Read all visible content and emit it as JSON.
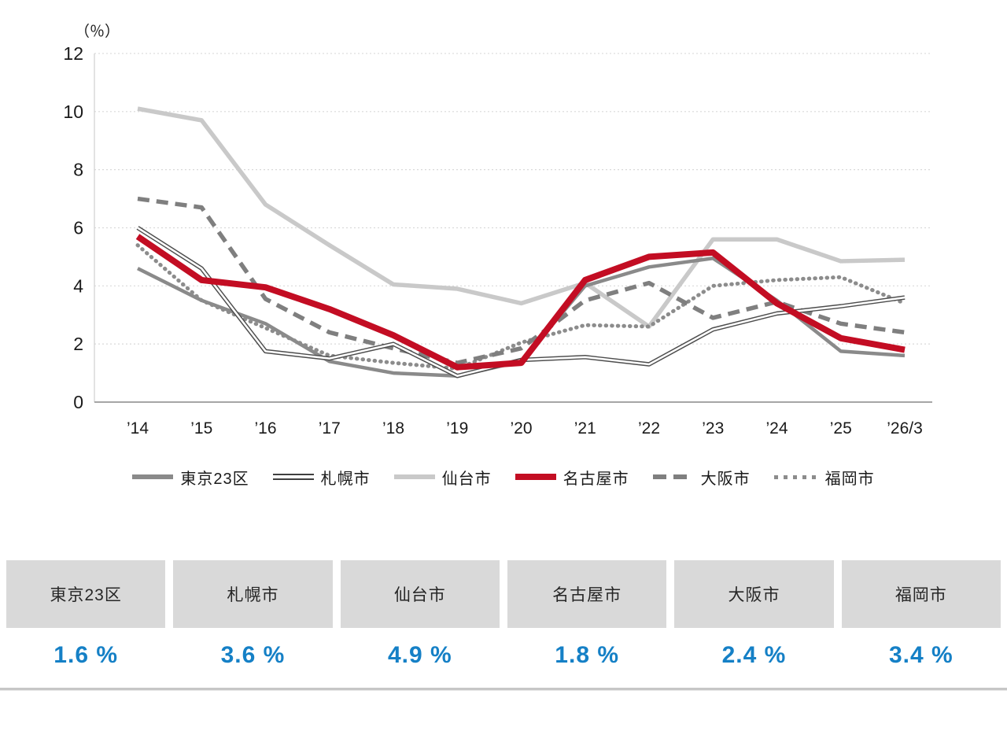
{
  "chart": {
    "unit_label": "（％）"
  },
  "chart_data": {
    "type": "line",
    "title": "",
    "xlabel": "",
    "ylabel": "（％）",
    "ylim": [
      0,
      12
    ],
    "yticks": [
      0,
      2,
      4,
      6,
      8,
      10,
      12
    ],
    "grid": true,
    "legend_position": "bottom",
    "categories": [
      "’14",
      "’15",
      "’16",
      "’17",
      "’18",
      "’19",
      "’20",
      "’21",
      "’22",
      "’23",
      "’24",
      "’25",
      "’26/3"
    ],
    "series": [
      {
        "key": "tokyo",
        "name": "東京23区",
        "color": "#8a8a8a",
        "line_style": "solid",
        "values": [
          4.6,
          3.5,
          2.7,
          1.4,
          1.0,
          0.9,
          1.4,
          4.0,
          4.65,
          4.95,
          3.5,
          1.75,
          1.6
        ]
      },
      {
        "key": "sapporo",
        "name": "札幌市",
        "color": "#4d4d4d",
        "line_style": "double",
        "values": [
          6.0,
          4.6,
          1.75,
          1.5,
          2.0,
          0.9,
          1.45,
          1.55,
          1.3,
          2.5,
          3.05,
          3.3,
          3.6
        ]
      },
      {
        "key": "sendai",
        "name": "仙台市",
        "color": "#c9c9c9",
        "line_style": "solid",
        "values": [
          10.1,
          9.7,
          6.8,
          5.4,
          4.05,
          3.9,
          3.4,
          4.1,
          2.6,
          5.6,
          5.6,
          4.85,
          4.9
        ]
      },
      {
        "key": "nagoya",
        "name": "名古屋市",
        "color": "#c30d23",
        "line_style": "solid",
        "values": [
          5.7,
          4.2,
          3.95,
          3.2,
          2.3,
          1.2,
          1.35,
          4.2,
          5.0,
          5.15,
          3.4,
          2.2,
          1.8
        ]
      },
      {
        "key": "osaka",
        "name": "大阪市",
        "color": "#7f7f7f",
        "line_style": "dashed",
        "values": [
          7.0,
          6.7,
          3.55,
          2.4,
          1.85,
          1.35,
          1.85,
          3.5,
          4.1,
          2.9,
          3.45,
          2.7,
          2.4
        ]
      },
      {
        "key": "fukuoka",
        "name": "福岡市",
        "color": "#8c8c8c",
        "line_style": "dotted",
        "values": [
          5.4,
          3.5,
          2.55,
          1.6,
          1.35,
          1.15,
          2.05,
          2.65,
          2.6,
          4.0,
          4.2,
          4.3,
          3.4
        ]
      }
    ]
  },
  "summary_table": {
    "columns": [
      {
        "key": "tokyo",
        "city": "東京23区",
        "value": "1.6 %"
      },
      {
        "key": "sapporo",
        "city": "札幌市",
        "value": "3.6 %"
      },
      {
        "key": "sendai",
        "city": "仙台市",
        "value": "4.9 %"
      },
      {
        "key": "nagoya",
        "city": "名古屋市",
        "value": "1.8 %"
      },
      {
        "key": "osaka",
        "city": "大阪市",
        "value": "2.4 %"
      },
      {
        "key": "fukuoka",
        "city": "福岡市",
        "value": "3.4 %"
      }
    ]
  },
  "colors": {
    "accent_red": "#c30d23",
    "value_blue": "#1580c6",
    "header_gray": "#d9d9d9",
    "grid_gray": "#d9d9d9",
    "axis_gray": "#a6a6a6"
  }
}
